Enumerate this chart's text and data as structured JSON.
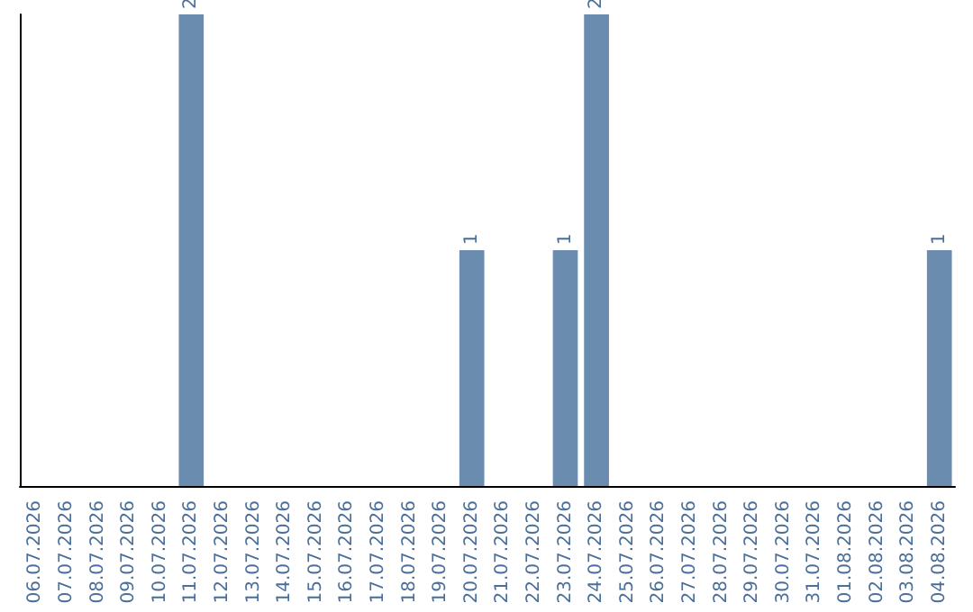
{
  "chart_data": {
    "type": "bar",
    "categories": [
      "06.07.2026",
      "07.07.2026",
      "08.07.2026",
      "09.07.2026",
      "10.07.2026",
      "11.07.2026",
      "12.07.2026",
      "13.07.2026",
      "14.07.2026",
      "15.07.2026",
      "16.07.2026",
      "17.07.2026",
      "18.07.2026",
      "19.07.2026",
      "20.07.2026",
      "21.07.2026",
      "22.07.2026",
      "23.07.2026",
      "24.07.2026",
      "25.07.2026",
      "26.07.2026",
      "27.07.2026",
      "28.07.2026",
      "29.07.2026",
      "30.07.2026",
      "31.07.2026",
      "01.08.2026",
      "02.08.2026",
      "03.08.2026",
      "04.08.2026"
    ],
    "values": [
      0,
      0,
      0,
      0,
      0,
      2,
      0,
      0,
      0,
      0,
      0,
      0,
      0,
      0,
      1,
      0,
      0,
      1,
      2,
      0,
      0,
      0,
      0,
      0,
      0,
      0,
      0,
      0,
      0,
      1
    ],
    "value_labels": [
      null,
      null,
      null,
      null,
      null,
      "2",
      null,
      null,
      null,
      null,
      null,
      null,
      null,
      null,
      "1",
      null,
      null,
      "1",
      "2",
      null,
      null,
      null,
      null,
      null,
      null,
      null,
      null,
      null,
      null,
      "1"
    ],
    "color": "#6a8caf",
    "tick_labels": "x"
  }
}
